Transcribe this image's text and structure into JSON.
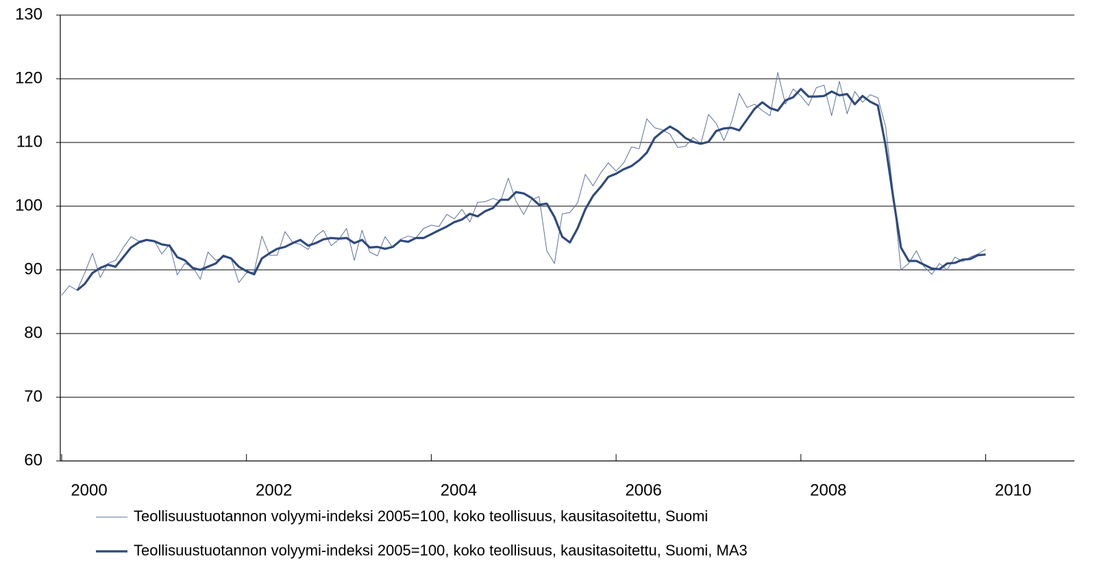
{
  "chart_data": {
    "type": "line",
    "xlim": [
      1999.985,
      2010.96
    ],
    "xticks": [
      2000,
      2002,
      2004,
      2006,
      2008,
      2010
    ],
    "ylim": [
      60,
      130
    ],
    "yticks": [
      60,
      70,
      80,
      90,
      100,
      110,
      120,
      130
    ],
    "grid": true,
    "legend": "bottom",
    "x": [
      2000,
      2000.083,
      2000.167,
      2000.25,
      2000.333,
      2000.417,
      2000.5,
      2000.583,
      2000.667,
      2000.75,
      2000.833,
      2000.917,
      2001,
      2001.083,
      2001.167,
      2001.25,
      2001.333,
      2001.417,
      2001.5,
      2001.583,
      2001.667,
      2001.75,
      2001.833,
      2001.917,
      2002,
      2002.083,
      2002.167,
      2002.25,
      2002.333,
      2002.417,
      2002.5,
      2002.583,
      2002.667,
      2002.75,
      2002.833,
      2002.917,
      2003,
      2003.083,
      2003.167,
      2003.25,
      2003.333,
      2003.417,
      2003.5,
      2003.583,
      2003.667,
      2003.75,
      2003.833,
      2003.917,
      2004,
      2004.083,
      2004.167,
      2004.25,
      2004.333,
      2004.417,
      2004.5,
      2004.583,
      2004.667,
      2004.75,
      2004.833,
      2004.917,
      2005,
      2005.083,
      2005.167,
      2005.25,
      2005.333,
      2005.417,
      2005.5,
      2005.583,
      2005.667,
      2005.75,
      2005.833,
      2005.917,
      2006,
      2006.083,
      2006.167,
      2006.25,
      2006.333,
      2006.417,
      2006.5,
      2006.583,
      2006.667,
      2006.75,
      2006.833,
      2006.917,
      2007,
      2007.083,
      2007.167,
      2007.25,
      2007.333,
      2007.417,
      2007.5,
      2007.583,
      2007.667,
      2007.75,
      2007.833,
      2007.917,
      2008,
      2008.083,
      2008.167,
      2008.25,
      2008.333,
      2008.417,
      2008.5,
      2008.583,
      2008.667,
      2008.75,
      2008.833,
      2008.917,
      2009,
      2009.083,
      2009.167,
      2009.25,
      2009.333,
      2009.417,
      2009.5,
      2009.583,
      2009.667,
      2009.75,
      2009.833,
      2009.917,
      2010
    ],
    "series": [
      {
        "name": "Teollisuustuotannon volyymi-indeksi 2005=100, koko teollisuus, kausitasoitettu, Suomi",
        "color": "#5b6f9e",
        "values": [
          86.0,
          87.5,
          86.8,
          89.5,
          92.6,
          88.8,
          91.0,
          91.5,
          93.5,
          95.2,
          94.5,
          94.8,
          94.6,
          92.5,
          94.0,
          89.2,
          91.0,
          90.5,
          88.5,
          92.8,
          91.5,
          92.0,
          91.8,
          88.0,
          89.5,
          89.7,
          95.3,
          92.3,
          92.3,
          96.0,
          94.3,
          94.0,
          93.2,
          95.3,
          96.2,
          93.8,
          94.8,
          96.5,
          91.5,
          96.2,
          92.8,
          92.2,
          95.2,
          93.5,
          94.8,
          95.3,
          95.0,
          96.5,
          97.0,
          96.8,
          98.7,
          98.0,
          99.5,
          97.5,
          100.6,
          100.7,
          101.2,
          100.8,
          104.4,
          100.8,
          98.7,
          101.0,
          101.5,
          93.0,
          91.0,
          98.8,
          99.0,
          100.5,
          105.0,
          103.2,
          105.2,
          106.8,
          105.5,
          106.8,
          109.3,
          109.0,
          113.7,
          112.3,
          112.0,
          111.3,
          109.2,
          109.4,
          110.8,
          109.8,
          114.4,
          113.0,
          110.3,
          113.2,
          117.7,
          115.5,
          116.0,
          115.0,
          114.2,
          121.0,
          116.0,
          118.4,
          117.3,
          115.8,
          118.6,
          119.0,
          114.2,
          119.6,
          114.5,
          118.0,
          116.3,
          117.5,
          117.0,
          112.5,
          102.0,
          90.0,
          91.0,
          93.0,
          90.5,
          89.3,
          91.0,
          90.0,
          92.0,
          91.3,
          92.0,
          92.5,
          93.2
        ]
      },
      {
        "name": "Teollisuustuotannon volyymi-indeksi 2005=100, koko teollisuus, kausitasoitettu, Suomi, MA3",
        "color": "#2e4a7d",
        "values": [
          null,
          null,
          86.8,
          87.8,
          89.5,
          90.3,
          90.8,
          90.5,
          92.0,
          93.5,
          94.3,
          94.7,
          94.5,
          94.0,
          93.8,
          92.0,
          91.5,
          90.3,
          90.0,
          90.5,
          91.0,
          92.2,
          91.8,
          90.5,
          89.8,
          89.3,
          91.8,
          92.6,
          93.3,
          93.6,
          94.2,
          94.7,
          93.8,
          94.2,
          94.8,
          95.0,
          94.9,
          95.0,
          94.2,
          94.7,
          93.5,
          93.6,
          93.3,
          93.6,
          94.6,
          94.4,
          95.0,
          95.0,
          95.6,
          96.2,
          96.8,
          97.5,
          97.9,
          98.8,
          98.4,
          99.2,
          99.7,
          101.0,
          101.0,
          102.2,
          102.0,
          101.3,
          100.2,
          100.4,
          98.3,
          95.2,
          94.3,
          96.5,
          99.5,
          101.6,
          103.0,
          104.6,
          105.1,
          105.8,
          106.3,
          107.2,
          108.4,
          110.7,
          111.7,
          112.5,
          111.8,
          110.7,
          110.1,
          109.8,
          110.1,
          111.8,
          112.2,
          112.3,
          111.9,
          113.6,
          115.3,
          116.3,
          115.4,
          115.0,
          116.6,
          117.1,
          118.4,
          117.2,
          117.2,
          117.3,
          118.0,
          117.4,
          117.6,
          116.0,
          117.3,
          116.4,
          115.8,
          109.5,
          101.3,
          93.5,
          91.4,
          91.4,
          90.8,
          90.2,
          90.1,
          91.0,
          91.1,
          91.6,
          91.7,
          92.3,
          92.4
        ]
      }
    ]
  }
}
